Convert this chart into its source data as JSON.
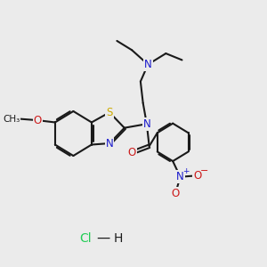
{
  "background_color": "#ebebeb",
  "bond_color": "#1a1a1a",
  "bond_width": 1.5,
  "atom_colors": {
    "N": "#1a1acc",
    "O": "#cc1a1a",
    "S": "#ccaa00",
    "Cl": "#22cc55"
  },
  "font_size_atom": 8.5,
  "font_size_small": 7.5
}
